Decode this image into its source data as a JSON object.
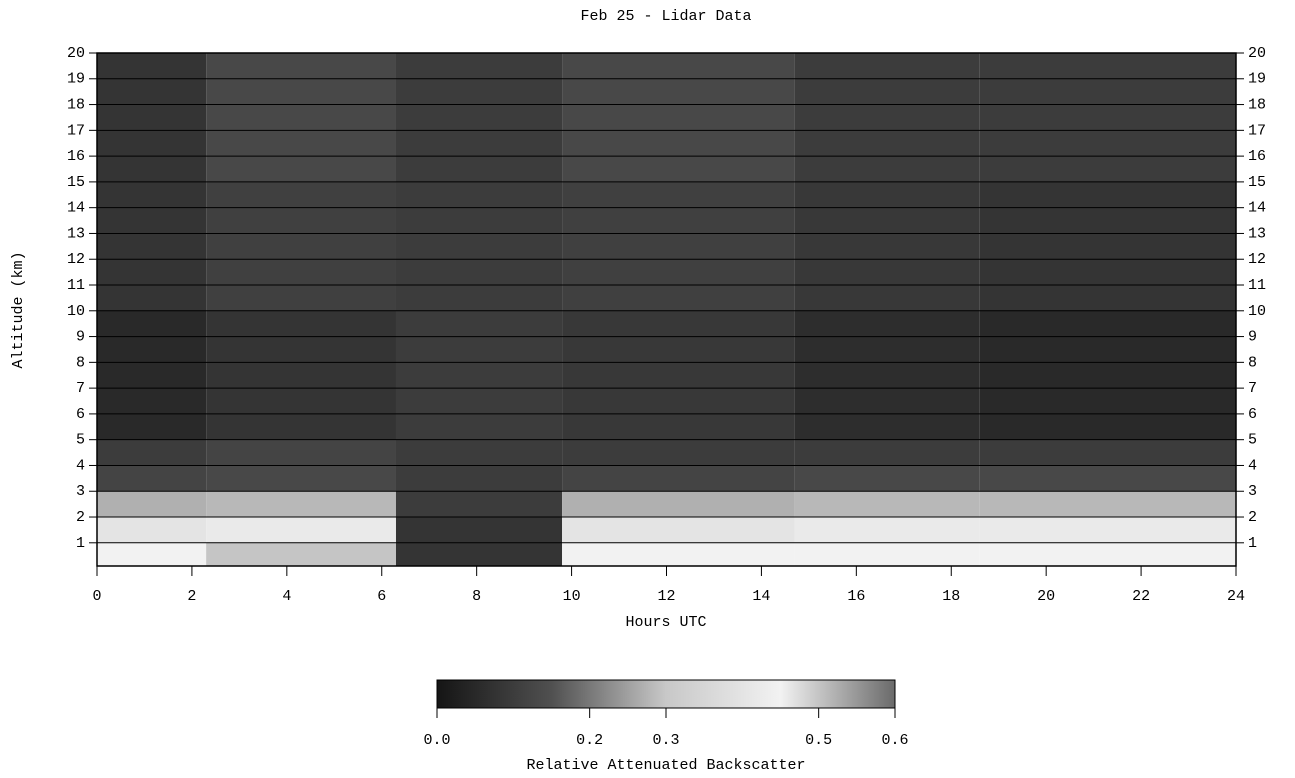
{
  "chart_data": {
    "type": "heatmap",
    "title": "Feb 25 - Lidar Data",
    "xlabel": "Hours UTC",
    "ylabel": "Altitude (km)",
    "xlim": [
      0,
      24
    ],
    "xticks": [
      0,
      2,
      4,
      6,
      8,
      10,
      12,
      14,
      16,
      18,
      20,
      22,
      24
    ],
    "ylim": [
      0.1,
      20
    ],
    "yticks": [
      1,
      2,
      3,
      4,
      5,
      6,
      7,
      8,
      9,
      10,
      11,
      12,
      13,
      14,
      15,
      16,
      17,
      18,
      19,
      20
    ],
    "grid": true,
    "x_edges": [
      0,
      2.3,
      6.3,
      9.8,
      14.7,
      18.6,
      24
    ],
    "y_edges": [
      0.1,
      1,
      2,
      3,
      4,
      5,
      10,
      15,
      20
    ],
    "values": [
      [
        0.45,
        0.5,
        0.08,
        0.45,
        0.45,
        0.45
      ],
      [
        0.4,
        0.42,
        0.08,
        0.4,
        0.42,
        0.42
      ],
      [
        0.27,
        0.28,
        0.1,
        0.27,
        0.28,
        0.28
      ],
      [
        0.12,
        0.13,
        0.1,
        0.12,
        0.13,
        0.13
      ],
      [
        0.1,
        0.12,
        0.1,
        0.1,
        0.1,
        0.1
      ],
      [
        0.05,
        0.08,
        0.1,
        0.09,
        0.06,
        0.05
      ],
      [
        0.08,
        0.11,
        0.1,
        0.11,
        0.09,
        0.08
      ],
      [
        0.08,
        0.13,
        0.1,
        0.13,
        0.1,
        0.1
      ]
    ],
    "colorbar": {
      "label": "Relative Attenuated Backscatter",
      "clim": [
        0,
        0.6
      ],
      "ticks": [
        {
          "value": 0,
          "label": "0.0"
        },
        0.2,
        0.3,
        0.5,
        0.6
      ],
      "colormap": [
        "#151515",
        "#505050",
        "#c8c8c8",
        "#f2f2f2",
        "#6a6a6a"
      ]
    }
  }
}
